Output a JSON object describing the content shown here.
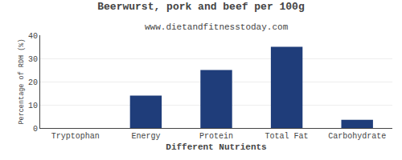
{
  "chart_data": {
    "type": "bar",
    "title": "Beerwurst, pork and beef per 100g",
    "subtitle": "www.dietandfitnesstoday.com",
    "xlabel": "Different Nutrients",
    "ylabel": "Percentage of RDH (%)",
    "categories": [
      "Tryptophan",
      "Energy",
      "Protein",
      "Total Fat",
      "Carbohydrate"
    ],
    "values": [
      0.0,
      14.0,
      25.0,
      35.0,
      3.5
    ],
    "color": "#1f3d7a",
    "ylim": [
      0,
      40
    ],
    "yticks": [
      0,
      10,
      20,
      30,
      40
    ],
    "grid": true
  }
}
